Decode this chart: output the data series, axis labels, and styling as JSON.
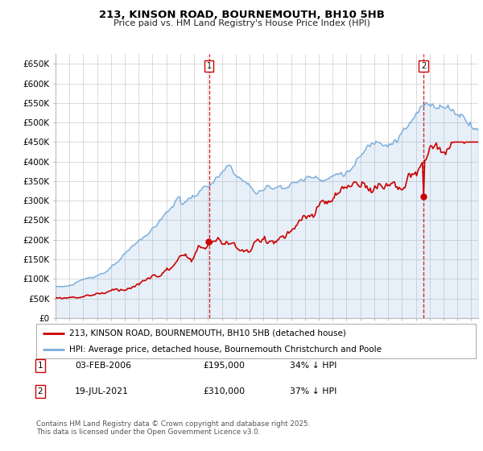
{
  "title": "213, KINSON ROAD, BOURNEMOUTH, BH10 5HB",
  "subtitle": "Price paid vs. HM Land Registry's House Price Index (HPI)",
  "ylabel_ticks": [
    "£0",
    "£50K",
    "£100K",
    "£150K",
    "£200K",
    "£250K",
    "£300K",
    "£350K",
    "£400K",
    "£450K",
    "£500K",
    "£550K",
    "£600K",
    "£650K"
  ],
  "ytick_values": [
    0,
    50000,
    100000,
    150000,
    200000,
    250000,
    300000,
    350000,
    400000,
    450000,
    500000,
    550000,
    600000,
    650000
  ],
  "ylim": [
    0,
    675000
  ],
  "xlim_start": 1995.0,
  "xlim_end": 2025.5,
  "hpi_color": "#7aaddc",
  "price_color": "#cc0000",
  "vline_color": "#cc0000",
  "legend_entry1": "213, KINSON ROAD, BOURNEMOUTH, BH10 5HB (detached house)",
  "legend_entry2": "HPI: Average price, detached house, Bournemouth Christchurch and Poole",
  "marker1_date": 2006.09,
  "marker1_price": 195000,
  "marker2_date": 2021.55,
  "marker2_price": 310000,
  "table_row1": [
    "1",
    "03-FEB-2006",
    "£195,000",
    "34% ↓ HPI"
  ],
  "table_row2": [
    "2",
    "19-JUL-2021",
    "£310,000",
    "37% ↓ HPI"
  ],
  "footer": "Contains HM Land Registry data © Crown copyright and database right 2025.\nThis data is licensed under the Open Government Licence v3.0.",
  "background_color": "#ffffff",
  "grid_color": "#cccccc",
  "title_fontsize": 9.5,
  "subtitle_fontsize": 8.0
}
